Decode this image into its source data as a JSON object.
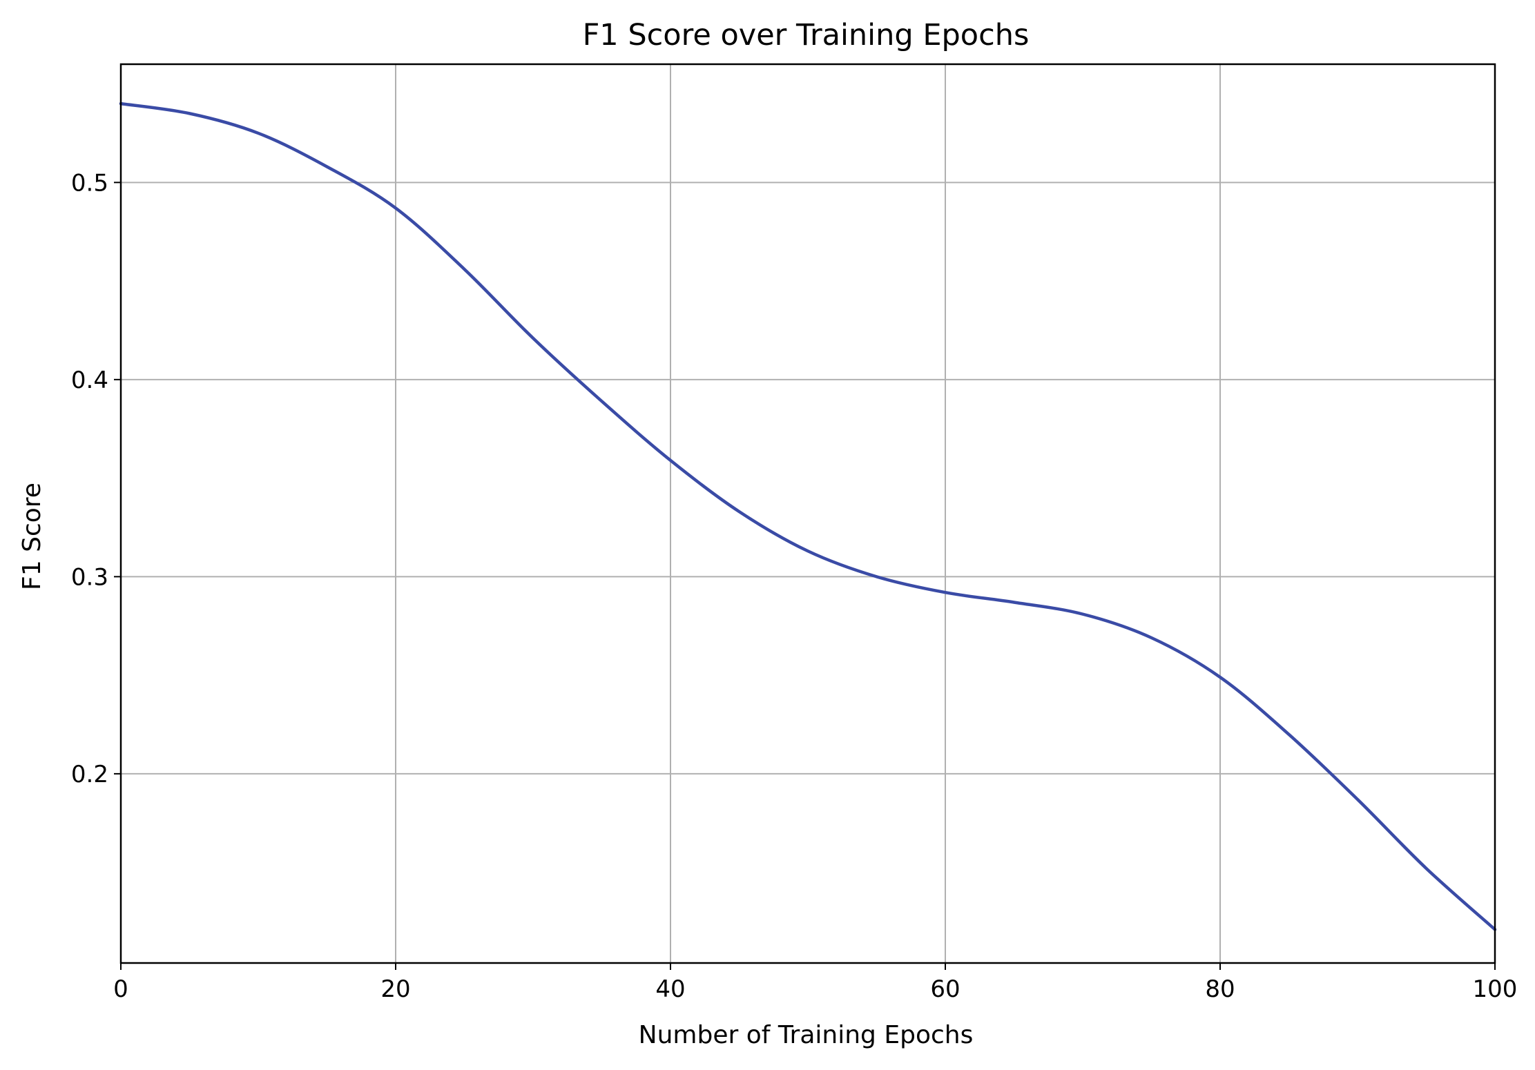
{
  "chart_data": {
    "type": "line",
    "title": "F1 Score over Training Epochs",
    "xlabel": "Number of Training Epochs",
    "ylabel": "F1 Score",
    "xlim": [
      0,
      100
    ],
    "ylim": [
      0.104,
      0.56
    ],
    "xticks": [
      0,
      20,
      40,
      60,
      80,
      100
    ],
    "xtick_labels": [
      "0",
      "20",
      "40",
      "60",
      "80",
      "100"
    ],
    "yticks": [
      0.2,
      0.3,
      0.4,
      0.5
    ],
    "ytick_labels": [
      "0.2",
      "0.3",
      "0.4",
      "0.5"
    ],
    "grid": true,
    "legend": "none",
    "line_color": "#3a4ba6",
    "series": [
      {
        "x": [
          0,
          5,
          10,
          15,
          20,
          25,
          30,
          35,
          40,
          45,
          50,
          55,
          60,
          65,
          70,
          75,
          80,
          85,
          90,
          95,
          100
        ],
        "values": [
          0.54,
          0.535,
          0.525,
          0.508,
          0.487,
          0.456,
          0.421,
          0.389,
          0.359,
          0.333,
          0.313,
          0.3,
          0.292,
          0.287,
          0.281,
          0.269,
          0.249,
          0.22,
          0.187,
          0.152,
          0.121
        ]
      }
    ]
  }
}
